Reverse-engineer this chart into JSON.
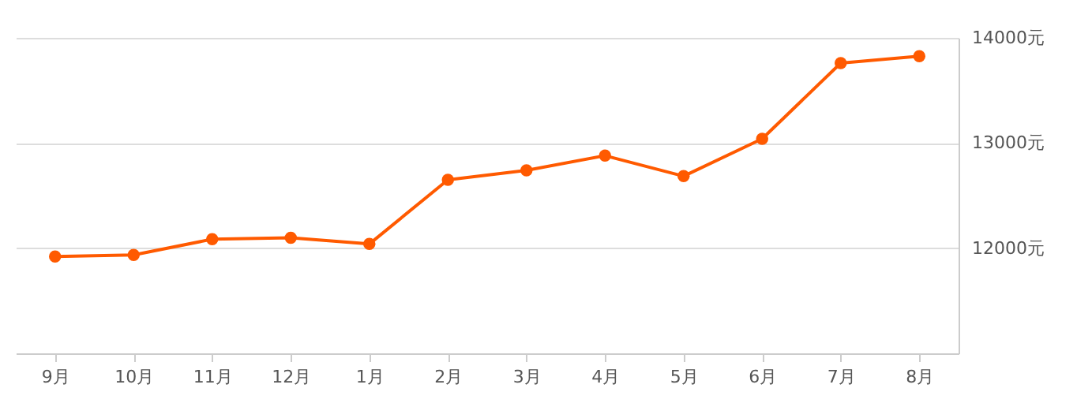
{
  "chart_data": {
    "type": "line",
    "categories": [
      "9月",
      "10月",
      "11月",
      "12月",
      "1月",
      "2月",
      "3月",
      "4月",
      "5月",
      "6月",
      "7月",
      "8月"
    ],
    "series": [
      {
        "color": "#ff5a00",
        "values": [
          11920,
          11935,
          12085,
          12098,
          12040,
          12650,
          12740,
          12880,
          12685,
          13040,
          13760,
          13825
        ]
      }
    ],
    "ylim": [
      11000,
      14000
    ],
    "yticks": [
      {
        "value": 11000,
        "label": null
      },
      {
        "value": 12000,
        "label": "12000元"
      },
      {
        "value": 13000,
        "label": "13000元"
      },
      {
        "value": 14000,
        "label": "14000元"
      }
    ],
    "grid": "y",
    "marker": "circle",
    "line_style": "solid"
  }
}
